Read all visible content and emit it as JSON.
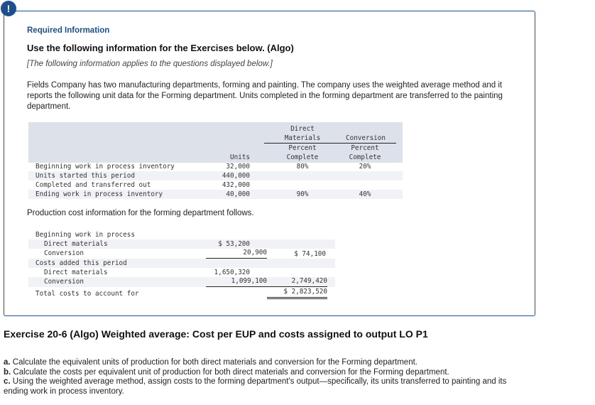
{
  "header": {
    "alert_icon": "!",
    "required": "Required Information",
    "use": "Use the following information for the Exercises below. (Algo)",
    "note": "[The following information applies to the questions displayed below.]"
  },
  "paragraph": "Fields Company has two manufacturing departments, forming and painting. The company uses the weighted average method and it reports the following unit data for the Forming department. Units completed in the forming department are transferred to the painting department.",
  "units_table": {
    "headers": {
      "units": "Units",
      "dm_top1": "Direct",
      "dm_top2": "Materials",
      "dm_sub1": "Percent",
      "dm_sub2": "Complete",
      "cv_top": "Conversion",
      "cv_sub1": "Percent",
      "cv_sub2": "Complete"
    },
    "rows": [
      {
        "label": "Beginning work in process inventory",
        "units": "32,000",
        "dm": "80%",
        "cv": "20%"
      },
      {
        "label": "Units started this period",
        "units": "440,000",
        "dm": "",
        "cv": ""
      },
      {
        "label": "Completed and transferred out",
        "units": "432,000",
        "dm": "",
        "cv": ""
      },
      {
        "label": "Ending work in process inventory",
        "units": "40,000",
        "dm": "90%",
        "cv": "40%"
      }
    ]
  },
  "cost_intro": "Production cost information for the forming department follows.",
  "cost_table": {
    "rows": [
      {
        "label": "Beginning work in process",
        "a": "",
        "b": ""
      },
      {
        "label": "Direct materials",
        "a": "$ 53,200",
        "b": ""
      },
      {
        "label": "Conversion",
        "a": "20,900",
        "b": "$ 74,100"
      },
      {
        "label": "Costs added this period",
        "a": "",
        "b": ""
      },
      {
        "label": "Direct materials",
        "a": "1,650,320",
        "b": ""
      },
      {
        "label": "Conversion",
        "a": "1,099,100",
        "b": "2,749,420"
      },
      {
        "label": "Total costs to account for",
        "a": "",
        "b": "$ 2,823,520"
      }
    ]
  },
  "exercise": {
    "title": "Exercise 20-6 (Algo) Weighted average: Cost per EUP and costs assigned to output LO P1",
    "parts": [
      {
        "letter": "a.",
        "text": " Calculate the equivalent units of production for both direct materials and conversion for the Forming department."
      },
      {
        "letter": "b.",
        "text": " Calculate the costs per equivalent unit of production for both direct materials and conversion for the Forming department."
      },
      {
        "letter": "c.",
        "text": " Using the weighted average method, assign costs to the forming department's output—specifically, its units transferred to painting and its ending work in process inventory."
      }
    ]
  }
}
